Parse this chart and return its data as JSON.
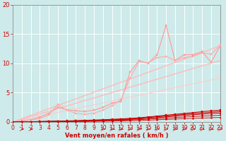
{
  "xlabel": "Vent moyen/en rafales ( km/h )",
  "ylim": [
    0,
    20
  ],
  "xlim": [
    0,
    23
  ],
  "yticks": [
    0,
    5,
    10,
    15,
    20
  ],
  "xticks": [
    0,
    1,
    2,
    3,
    4,
    5,
    6,
    7,
    8,
    9,
    10,
    11,
    12,
    13,
    14,
    15,
    16,
    17,
    18,
    19,
    20,
    21,
    22,
    23
  ],
  "bg_color": "#ceeaea",
  "grid_color": "#ffffff",
  "series": [
    {
      "x": [
        0,
        1,
        2,
        3,
        4,
        5,
        6,
        7,
        8,
        9,
        10,
        11,
        12,
        13,
        14,
        15,
        16,
        17,
        18,
        19,
        20,
        21,
        22,
        23
      ],
      "y": [
        0,
        0.0,
        0.05,
        0.08,
        0.12,
        0.15,
        0.18,
        0.22,
        0.28,
        0.32,
        0.38,
        0.45,
        0.52,
        0.6,
        0.7,
        0.85,
        1.0,
        1.15,
        1.3,
        1.45,
        1.6,
        1.75,
        1.9,
        2.0
      ],
      "color": "#cc0000",
      "lw": 0.8,
      "marker": "s",
      "ms": 1.5,
      "zorder": 5
    },
    {
      "x": [
        0,
        1,
        2,
        3,
        4,
        5,
        6,
        7,
        8,
        9,
        10,
        11,
        12,
        13,
        14,
        15,
        16,
        17,
        18,
        19,
        20,
        21,
        22,
        23
      ],
      "y": [
        0,
        0.0,
        0.04,
        0.06,
        0.09,
        0.12,
        0.15,
        0.18,
        0.22,
        0.26,
        0.32,
        0.38,
        0.44,
        0.52,
        0.62,
        0.75,
        0.88,
        1.0,
        1.15,
        1.28,
        1.4,
        1.52,
        1.65,
        1.75
      ],
      "color": "#cc0000",
      "lw": 0.8,
      "marker": "s",
      "ms": 1.5,
      "zorder": 5
    },
    {
      "x": [
        0,
        1,
        2,
        3,
        4,
        5,
        6,
        7,
        8,
        9,
        10,
        11,
        12,
        13,
        14,
        15,
        16,
        17,
        18,
        19,
        20,
        21,
        22,
        23
      ],
      "y": [
        0,
        0.0,
        0.02,
        0.04,
        0.07,
        0.09,
        0.11,
        0.14,
        0.17,
        0.21,
        0.26,
        0.31,
        0.37,
        0.44,
        0.52,
        0.63,
        0.74,
        0.86,
        0.98,
        1.1,
        1.22,
        1.32,
        1.44,
        1.52
      ],
      "color": "#cc0000",
      "lw": 0.7,
      "marker": "^",
      "ms": 2.0,
      "zorder": 5
    },
    {
      "x": [
        0,
        1,
        2,
        3,
        4,
        5,
        6,
        7,
        8,
        9,
        10,
        11,
        12,
        13,
        14,
        15,
        16,
        17,
        18,
        19,
        20,
        21,
        22,
        23
      ],
      "y": [
        0,
        0.0,
        0.01,
        0.02,
        0.04,
        0.06,
        0.08,
        0.1,
        0.13,
        0.16,
        0.2,
        0.24,
        0.28,
        0.34,
        0.4,
        0.48,
        0.56,
        0.65,
        0.74,
        0.83,
        0.92,
        1.0,
        1.08,
        1.15
      ],
      "color": "#cc0000",
      "lw": 0.6,
      "marker": "s",
      "ms": 1.2,
      "zorder": 5
    },
    {
      "x": [
        0,
        1,
        2,
        3,
        4,
        5,
        6,
        7,
        8,
        9,
        10,
        11,
        12,
        13,
        14,
        15,
        16,
        17,
        18,
        19,
        20,
        21,
        22,
        23
      ],
      "y": [
        0,
        0.0,
        0.01,
        0.02,
        0.03,
        0.04,
        0.05,
        0.06,
        0.08,
        0.1,
        0.12,
        0.15,
        0.18,
        0.22,
        0.26,
        0.31,
        0.37,
        0.43,
        0.49,
        0.55,
        0.61,
        0.67,
        0.72,
        0.77
      ],
      "color": "#cc0000",
      "lw": 0.6,
      "marker": "s",
      "ms": 1.2,
      "zorder": 5
    },
    {
      "x": [
        0,
        1,
        2,
        3,
        4,
        5,
        6,
        7,
        8,
        9,
        10,
        11,
        12,
        13,
        14,
        15,
        16,
        17,
        18,
        19,
        20,
        21,
        22,
        23
      ],
      "y": [
        0,
        0.2,
        0.4,
        0.8,
        1.5,
        2.5,
        2.1,
        1.9,
        1.8,
        2.0,
        2.5,
        3.2,
        3.5,
        8.5,
        10.5,
        10.0,
        11.5,
        16.5,
        10.5,
        11.5,
        11.5,
        12.0,
        10.2,
        13.0
      ],
      "color": "#ff9999",
      "lw": 0.8,
      "marker": "s",
      "ms": 2.0,
      "zorder": 3
    },
    {
      "x": [
        0,
        2,
        3,
        4,
        5,
        6,
        7,
        8,
        9,
        10,
        11,
        12,
        13,
        14,
        15,
        16,
        17,
        18,
        19,
        20,
        21,
        22,
        23
      ],
      "y": [
        0,
        0.3,
        0.6,
        1.2,
        3.0,
        2.0,
        1.5,
        1.3,
        1.5,
        2.0,
        2.8,
        3.8,
        7.5,
        10.3,
        10.1,
        11.0,
        11.2,
        10.5,
        11.0,
        11.2,
        11.8,
        11.6,
        13.1
      ],
      "color": "#ffaaaa",
      "lw": 0.8,
      "marker": "s",
      "ms": 1.8,
      "zorder": 3
    },
    {
      "x": [
        0,
        23
      ],
      "y": [
        0,
        13.0
      ],
      "color": "#ffbbbb",
      "lw": 1.0,
      "marker": null,
      "ms": 0,
      "zorder": 2
    },
    {
      "x": [
        0,
        23
      ],
      "y": [
        0,
        10.5
      ],
      "color": "#ffbbbb",
      "lw": 1.0,
      "marker": null,
      "ms": 0,
      "zorder": 2
    },
    {
      "x": [
        0,
        23
      ],
      "y": [
        0,
        7.5
      ],
      "color": "#ffcccc",
      "lw": 0.8,
      "marker": null,
      "ms": 0,
      "zorder": 2
    }
  ]
}
